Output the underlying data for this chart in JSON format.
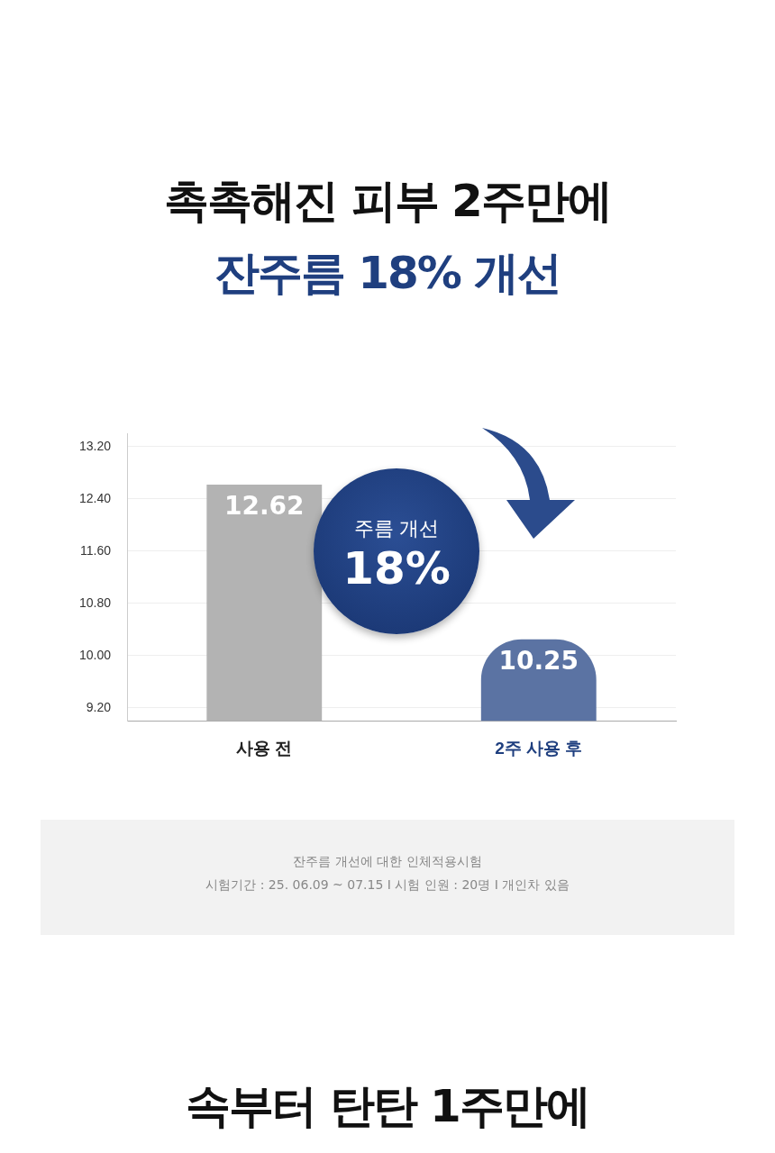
{
  "chart_data": {
    "type": "bar",
    "title": "촉촉해진 피부 2주만에",
    "subtitle": "잔주름 18% 개선",
    "categories": [
      "사용 전",
      "2주 사용 후"
    ],
    "values": [
      12.62,
      10.25
    ],
    "colors": [
      "#b3b3b3",
      "#5b73a3"
    ],
    "ylim": [
      9.0,
      13.4
    ],
    "yticks": [
      {
        "value": 9.2,
        "label": "9.20"
      },
      {
        "value": 10.0,
        "label": "10.00"
      },
      {
        "value": 10.8,
        "label": "10.80"
      },
      {
        "value": 11.6,
        "label": "11.60"
      },
      {
        "value": 12.4,
        "label": "12.40"
      },
      {
        "value": 13.2,
        "label": "13.20"
      }
    ],
    "grid": "y",
    "legend": false,
    "data_labels": true,
    "annotations": [
      "주름 개선",
      "18%",
      "잔주름 개선에 대한 인체적용시험",
      "시험기간 : 25. 06.09 ~ 07.15 I 시험 인원 : 20명 I 개인차 있음",
      "속부터 탄탄 1주만에"
    ]
  }
}
